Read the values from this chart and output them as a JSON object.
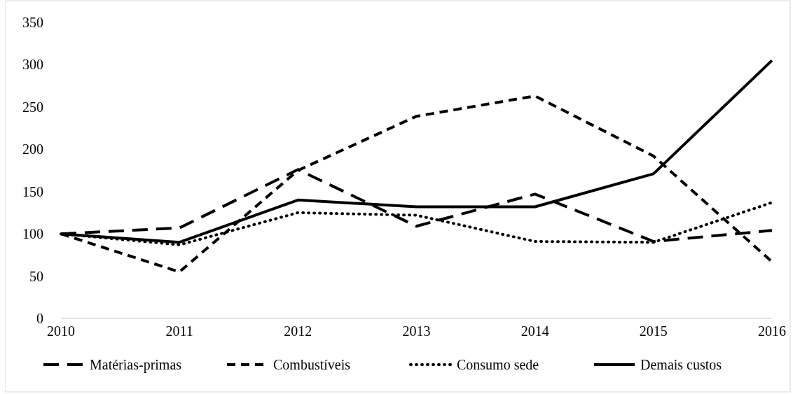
{
  "chart_data": {
    "type": "line",
    "categories": [
      "2010",
      "2011",
      "2012",
      "2013",
      "2014",
      "2015",
      "2016"
    ],
    "ylim": [
      0,
      350
    ],
    "yticks": [
      0,
      50,
      100,
      150,
      200,
      250,
      300,
      350
    ],
    "grid": false,
    "legend": "bottom",
    "series": [
      {
        "name": "Matérias-primas",
        "color": "#000000",
        "line_style": "dashed",
        "values": [
          100,
          107,
          176,
          109,
          147,
          91,
          104
        ]
      },
      {
        "name": "Combustíveis",
        "color": "#000000",
        "line_style": "dashed",
        "values": [
          100,
          55,
          175,
          239,
          263,
          192,
          67
        ]
      },
      {
        "name": "Consumo sede",
        "color": "#000000",
        "line_style": "dotted",
        "values": [
          100,
          87,
          125,
          122,
          91,
          90,
          137
        ]
      },
      {
        "name": "Demais custos",
        "color": "#000000",
        "line_style": "solid",
        "values": [
          100,
          90,
          140,
          132,
          132,
          171,
          305
        ]
      }
    ]
  }
}
